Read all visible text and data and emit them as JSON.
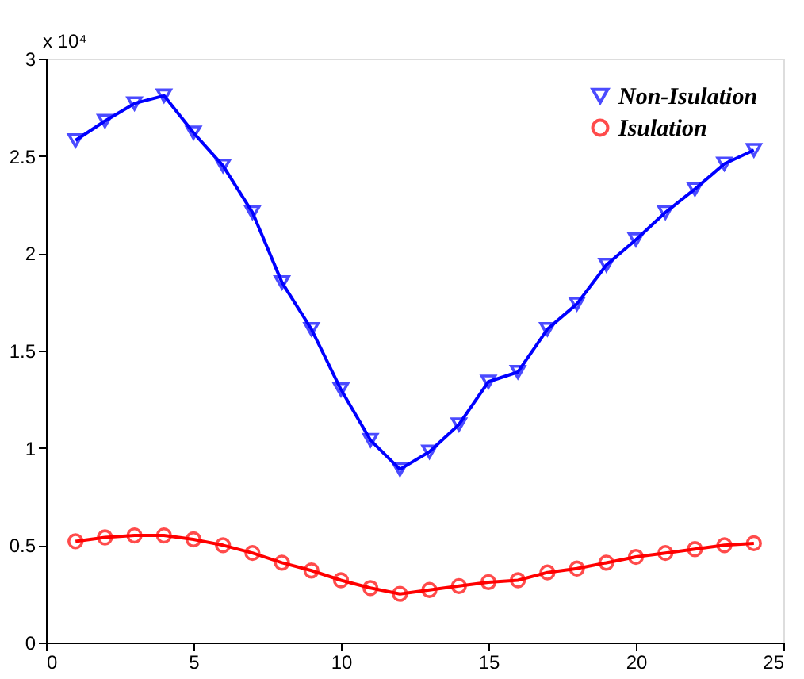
{
  "chart_data": {
    "type": "line",
    "x": [
      1,
      2,
      3,
      4,
      5,
      6,
      7,
      8,
      9,
      10,
      11,
      12,
      13,
      14,
      15,
      16,
      17,
      18,
      19,
      20,
      21,
      22,
      23,
      24
    ],
    "series": [
      {
        "name": "Non-Isulation",
        "color": "#0000ff",
        "marker": "triangle",
        "values": [
          2.58,
          2.68,
          2.77,
          2.81,
          2.62,
          2.45,
          2.21,
          1.85,
          1.61,
          1.3,
          1.04,
          0.89,
          0.98,
          1.12,
          1.34,
          1.39,
          1.61,
          1.74,
          1.94,
          2.07,
          2.21,
          2.33,
          2.46,
          2.53
        ]
      },
      {
        "name": "Isulation",
        "color": "#ff0000",
        "marker": "circle",
        "values": [
          0.52,
          0.54,
          0.55,
          0.55,
          0.53,
          0.5,
          0.46,
          0.41,
          0.37,
          0.32,
          0.28,
          0.25,
          0.27,
          0.29,
          0.31,
          0.32,
          0.36,
          0.38,
          0.41,
          0.44,
          0.46,
          0.48,
          0.5,
          0.51
        ]
      }
    ],
    "xlim": [
      0,
      25
    ],
    "xticks": [
      0,
      5,
      10,
      15,
      20,
      25
    ],
    "ylim": [
      0,
      3
    ],
    "yticks": [
      0,
      0.5,
      1,
      1.5,
      2,
      2.5,
      3
    ],
    "annotations": [
      "x 10⁴"
    ],
    "legend": "top right",
    "grid": false,
    "line_style": "solid"
  }
}
